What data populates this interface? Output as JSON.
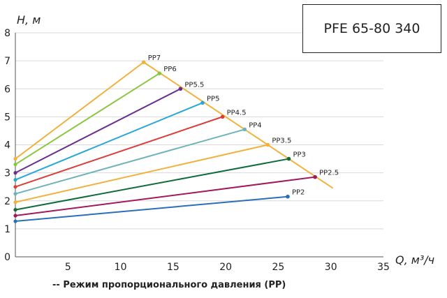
{
  "model_label": "PFE 65-80 340",
  "caption": "-- Режим пропорционального давления (PP)",
  "chart_data": {
    "type": "line",
    "title": "",
    "ylabel": "H, м",
    "xlabel": "Q, м³/ч",
    "xlim": [
      0,
      35
    ],
    "ylim": [
      0,
      8
    ],
    "xticks": [
      0,
      5,
      10,
      15,
      20,
      25,
      30,
      35
    ],
    "yticks": [
      0,
      1,
      2,
      3,
      4,
      5,
      6,
      7,
      8
    ],
    "grid": "horizontal",
    "series": [
      {
        "name": "PP2",
        "color": "#2a6ebb",
        "x": [
          0,
          25.9
        ],
        "y": [
          1.27,
          2.15
        ]
      },
      {
        "name": "PP2.5",
        "color": "#a3195b",
        "x": [
          0,
          28.5
        ],
        "y": [
          1.47,
          2.85
        ]
      },
      {
        "name": "PP3",
        "color": "#0f6b3a",
        "x": [
          0,
          26.0
        ],
        "y": [
          1.68,
          3.5
        ]
      },
      {
        "name": "PP3.5",
        "color": "#f0b23d",
        "x": [
          0,
          24.0
        ],
        "y": [
          1.95,
          4.0
        ]
      },
      {
        "name": "PP4",
        "color": "#6fb3b8",
        "x": [
          0,
          21.8
        ],
        "y": [
          2.25,
          4.55
        ]
      },
      {
        "name": "PP4.5",
        "color": "#d9403a",
        "x": [
          0,
          19.7
        ],
        "y": [
          2.5,
          5.0
        ]
      },
      {
        "name": "PP5",
        "color": "#2aa7d6",
        "x": [
          0,
          17.8
        ],
        "y": [
          2.75,
          5.5
        ]
      },
      {
        "name": "PP5.5",
        "color": "#6a2c8e",
        "x": [
          0,
          15.7
        ],
        "y": [
          3.0,
          6.0
        ]
      },
      {
        "name": "PP6",
        "color": "#8cc63f",
        "x": [
          0,
          13.7
        ],
        "y": [
          3.3,
          6.55
        ]
      },
      {
        "name": "PP7",
        "color": "#f0b23d",
        "x": [
          0,
          12.2
        ],
        "y": [
          3.5,
          6.95
        ]
      }
    ],
    "envelope": {
      "color": "#f0b23d",
      "x": [
        12.2,
        30.2
      ],
      "y": [
        6.95,
        2.45
      ]
    }
  }
}
